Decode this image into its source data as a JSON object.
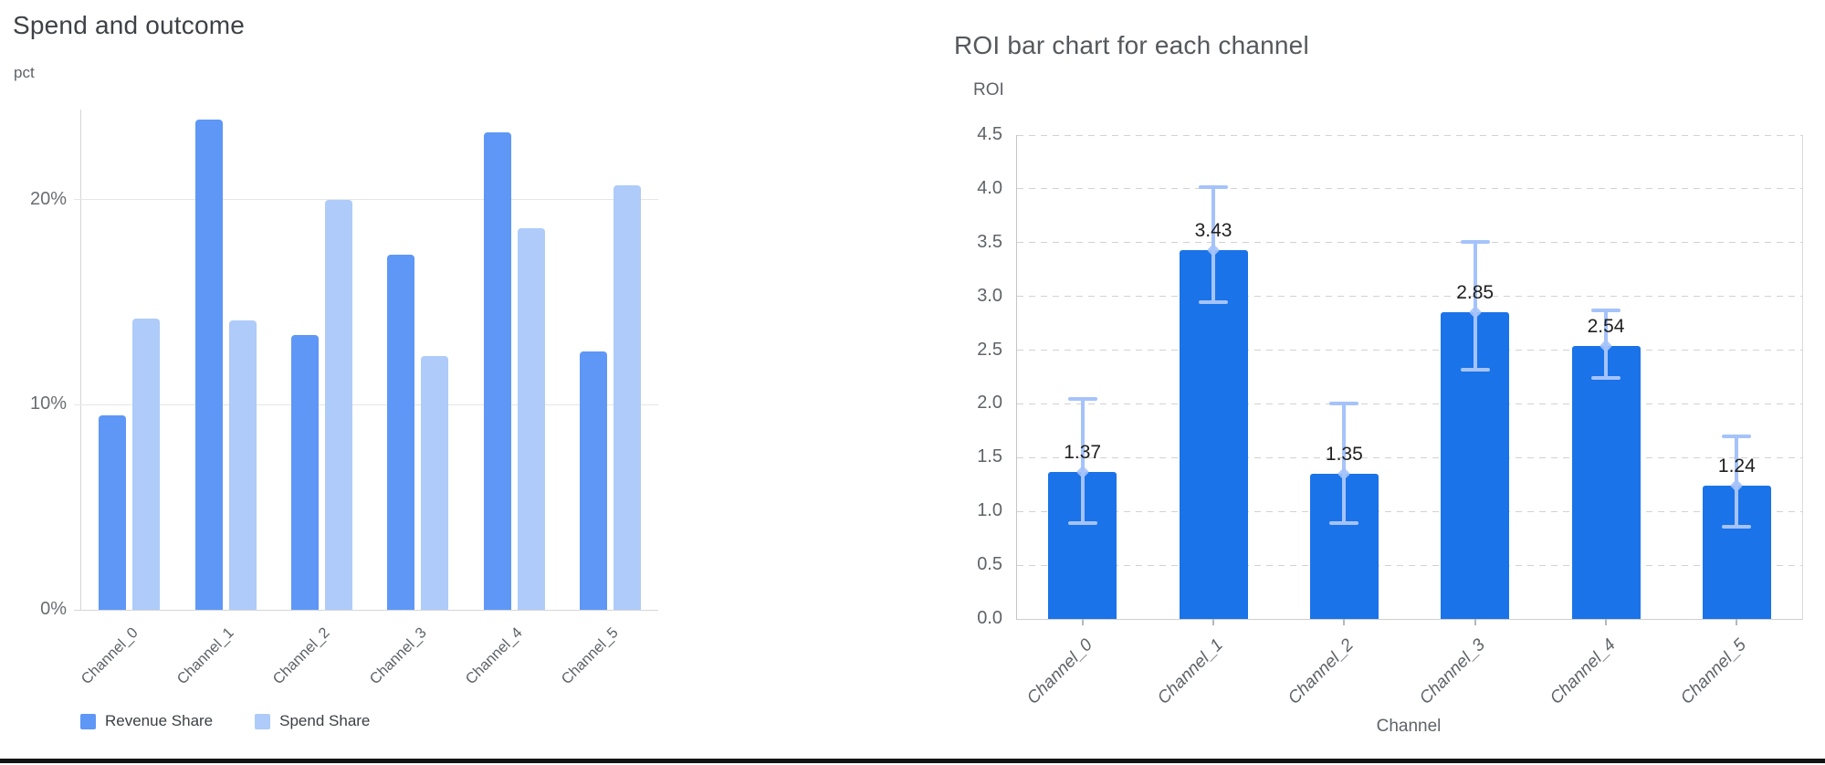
{
  "page": {
    "background": "#ffffff",
    "bottom_rule_color": "#131313"
  },
  "chart_data": [
    {
      "id": "spend_and_outcome",
      "type": "bar",
      "title": "Spend and outcome",
      "ylabel": "pct",
      "xlabel": "",
      "categories": [
        "Channel_0",
        "Channel_1",
        "Channel_2",
        "Channel_3",
        "Channel_4",
        "Channel_5"
      ],
      "series": [
        {
          "name": "Revenue Share",
          "color": "#5e97f6",
          "values": [
            9.5,
            23.9,
            13.4,
            17.3,
            23.3,
            12.6
          ]
        },
        {
          "name": "Spend Share",
          "color": "#aecbfa",
          "values": [
            14.2,
            14.1,
            20.0,
            12.4,
            18.6,
            20.7
          ]
        }
      ],
      "y_ticks": [
        {
          "value": 0,
          "label": "0%"
        },
        {
          "value": 10,
          "label": "10%"
        },
        {
          "value": 20,
          "label": "20%"
        }
      ],
      "ylim": [
        0,
        24.4
      ],
      "grid": "solid",
      "grid_color": "#e6e6e6",
      "axis_color": "#d6d6d6",
      "legend_position": "bottom"
    },
    {
      "id": "roi_by_channel",
      "type": "bar",
      "title": "ROI bar chart for each channel",
      "ylabel": "ROI",
      "xlabel": "Channel",
      "categories": [
        "Channel_0",
        "Channel_1",
        "Channel_2",
        "Channel_3",
        "Channel_4",
        "Channel_5"
      ],
      "values": [
        1.37,
        3.43,
        1.35,
        2.85,
        2.54,
        1.24
      ],
      "bar_labels": [
        "1.37",
        "3.43",
        "1.35",
        "2.85",
        "2.54",
        "1.24"
      ],
      "error_low": [
        0.89,
        2.95,
        0.89,
        2.32,
        2.24,
        0.86
      ],
      "error_high": [
        2.05,
        4.02,
        2.0,
        3.51,
        2.87,
        1.7
      ],
      "y_ticks": [
        {
          "value": 0.0,
          "label": "0.0"
        },
        {
          "value": 0.5,
          "label": "0.5"
        },
        {
          "value": 1.0,
          "label": "1.0"
        },
        {
          "value": 1.5,
          "label": "1.5"
        },
        {
          "value": 2.0,
          "label": "2.0"
        },
        {
          "value": 2.5,
          "label": "2.5"
        },
        {
          "value": 3.0,
          "label": "3.0"
        },
        {
          "value": 3.5,
          "label": "3.5"
        },
        {
          "value": 4.0,
          "label": "4.0"
        },
        {
          "value": 4.5,
          "label": "4.5"
        }
      ],
      "ylim": [
        0,
        4.5
      ],
      "grid": "dashed",
      "grid_color": "#d2d2d2",
      "bar_color": "#1a73e8",
      "error_color": "#a5c3fa",
      "value_label_color": "#1f1f1f",
      "legend_position": "none"
    }
  ]
}
